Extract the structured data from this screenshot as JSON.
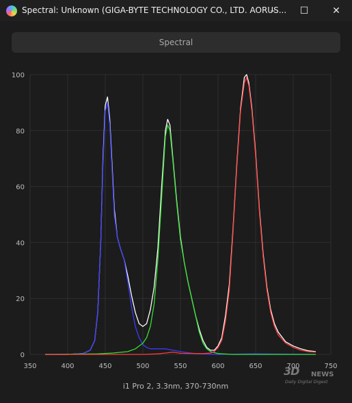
{
  "window": {
    "title": "Spectral: Unknown (GIGA-BYTE TECHNOLOGY CO., LTD. AORUS...",
    "app_icon": "spectral-app-icon",
    "minimize_icon": "minimize-icon",
    "maximize_icon": "maximize-icon",
    "close_icon": "close-icon"
  },
  "toolbar": {
    "spectral_label": "Spectral"
  },
  "chart_data": {
    "type": "line",
    "title": "",
    "caption": "i1 Pro 2, 3.3nm, 370-730nm",
    "xlim": [
      350,
      750
    ],
    "ylim": [
      0,
      100
    ],
    "x_ticks": [
      350,
      400,
      450,
      500,
      550,
      600,
      650,
      700,
      750
    ],
    "y_ticks": [
      0,
      20,
      40,
      60,
      80,
      100
    ],
    "grid": true,
    "series": [
      {
        "color": "#ffffff",
        "points": [
          [
            370,
            0
          ],
          [
            400,
            0
          ],
          [
            420,
            0.3
          ],
          [
            430,
            1.5
          ],
          [
            436,
            5
          ],
          [
            440,
            15
          ],
          [
            444,
            40
          ],
          [
            447,
            70
          ],
          [
            450,
            89
          ],
          [
            453,
            92
          ],
          [
            456,
            84
          ],
          [
            459,
            68
          ],
          [
            462,
            52
          ],
          [
            466,
            42
          ],
          [
            470,
            38
          ],
          [
            475,
            34
          ],
          [
            480,
            28
          ],
          [
            485,
            21
          ],
          [
            490,
            15
          ],
          [
            495,
            11
          ],
          [
            500,
            10
          ],
          [
            505,
            11
          ],
          [
            510,
            16
          ],
          [
            515,
            24
          ],
          [
            520,
            38
          ],
          [
            525,
            60
          ],
          [
            530,
            80
          ],
          [
            533,
            84
          ],
          [
            536,
            82
          ],
          [
            540,
            70
          ],
          [
            545,
            55
          ],
          [
            550,
            42
          ],
          [
            555,
            33
          ],
          [
            560,
            26
          ],
          [
            565,
            20
          ],
          [
            570,
            14
          ],
          [
            575,
            9
          ],
          [
            580,
            5
          ],
          [
            585,
            2.5
          ],
          [
            590,
            1.5
          ],
          [
            595,
            1.5
          ],
          [
            600,
            3
          ],
          [
            605,
            6
          ],
          [
            610,
            14
          ],
          [
            615,
            25
          ],
          [
            620,
            45
          ],
          [
            625,
            68
          ],
          [
            630,
            88
          ],
          [
            635,
            99
          ],
          [
            638,
            100
          ],
          [
            641,
            97
          ],
          [
            645,
            88
          ],
          [
            650,
            72
          ],
          [
            655,
            52
          ],
          [
            660,
            36
          ],
          [
            665,
            24
          ],
          [
            670,
            16
          ],
          [
            675,
            11
          ],
          [
            680,
            8
          ],
          [
            690,
            4.5
          ],
          [
            700,
            3
          ],
          [
            710,
            2
          ],
          [
            720,
            1.3
          ],
          [
            730,
            1
          ]
        ]
      },
      {
        "color": "#3b3bff",
        "points": [
          [
            370,
            0
          ],
          [
            400,
            0
          ],
          [
            420,
            0.3
          ],
          [
            430,
            1.5
          ],
          [
            436,
            5
          ],
          [
            440,
            15
          ],
          [
            444,
            40
          ],
          [
            447,
            68
          ],
          [
            450,
            87
          ],
          [
            453,
            90
          ],
          [
            456,
            82
          ],
          [
            459,
            66
          ],
          [
            462,
            50
          ],
          [
            466,
            42
          ],
          [
            470,
            38
          ],
          [
            475,
            34
          ],
          [
            480,
            26
          ],
          [
            485,
            17
          ],
          [
            490,
            10
          ],
          [
            495,
            6
          ],
          [
            500,
            3.5
          ],
          [
            505,
            2.5
          ],
          [
            510,
            2
          ],
          [
            520,
            2
          ],
          [
            530,
            2
          ],
          [
            540,
            1.5
          ],
          [
            550,
            1
          ],
          [
            560,
            0.6
          ],
          [
            570,
            0.3
          ],
          [
            580,
            0.2
          ],
          [
            600,
            0
          ],
          [
            650,
            0.2
          ],
          [
            700,
            0.1
          ],
          [
            730,
            0
          ]
        ]
      },
      {
        "color": "#33e033",
        "points": [
          [
            370,
            0
          ],
          [
            440,
            0.2
          ],
          [
            460,
            0.5
          ],
          [
            480,
            1
          ],
          [
            490,
            2
          ],
          [
            500,
            4
          ],
          [
            505,
            6
          ],
          [
            510,
            10
          ],
          [
            515,
            18
          ],
          [
            520,
            34
          ],
          [
            525,
            56
          ],
          [
            530,
            78
          ],
          [
            533,
            82
          ],
          [
            536,
            80
          ],
          [
            540,
            69
          ],
          [
            545,
            54
          ],
          [
            550,
            41
          ],
          [
            555,
            33
          ],
          [
            560,
            26
          ],
          [
            565,
            20
          ],
          [
            570,
            14
          ],
          [
            575,
            8
          ],
          [
            580,
            4
          ],
          [
            585,
            2
          ],
          [
            590,
            1
          ],
          [
            600,
            0.3
          ],
          [
            620,
            0
          ],
          [
            730,
            0
          ]
        ]
      },
      {
        "color": "#ff3b3b",
        "points": [
          [
            370,
            0
          ],
          [
            500,
            0
          ],
          [
            520,
            0.2
          ],
          [
            530,
            0.5
          ],
          [
            540,
            0.8
          ],
          [
            550,
            0.4
          ],
          [
            580,
            0.3
          ],
          [
            590,
            0.5
          ],
          [
            595,
            1
          ],
          [
            600,
            2.5
          ],
          [
            605,
            5
          ],
          [
            610,
            12
          ],
          [
            615,
            23
          ],
          [
            620,
            44
          ],
          [
            625,
            67
          ],
          [
            630,
            87
          ],
          [
            635,
            97
          ],
          [
            638,
            99
          ],
          [
            641,
            96
          ],
          [
            645,
            87
          ],
          [
            650,
            71
          ],
          [
            655,
            51
          ],
          [
            660,
            35
          ],
          [
            665,
            23
          ],
          [
            670,
            15
          ],
          [
            675,
            10
          ],
          [
            680,
            7
          ],
          [
            690,
            4
          ],
          [
            700,
            2.5
          ],
          [
            710,
            1.5
          ],
          [
            720,
            1
          ],
          [
            730,
            0.8
          ]
        ]
      }
    ]
  },
  "watermark": {
    "logo": "3D",
    "news": "NEWS",
    "tagline": "Daily Digital Digest"
  }
}
